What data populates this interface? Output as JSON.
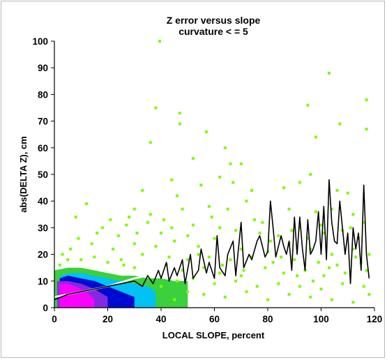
{
  "chart_data": {
    "type": "heatmap",
    "title": "Z error versus slope",
    "subtitle": "curvature < = 5",
    "xlabel": "LOCAL SLOPE, percent",
    "ylabel": "abs(DELTA Z), cm",
    "xlim": [
      0,
      120
    ],
    "ylim": [
      0,
      100
    ],
    "x_ticks": [
      0,
      20,
      40,
      60,
      80,
      100,
      120
    ],
    "y_ticks": [
      0,
      10,
      20,
      30,
      40,
      50,
      60,
      70,
      80,
      90,
      100
    ],
    "grid": false,
    "legend": "none",
    "colors": {
      "sparse": "#7cfc00",
      "low": "#32cd32",
      "medium": "#00bfff",
      "high": "#0000cd",
      "very_high": "#8a2be2",
      "peak": "#ff00ff",
      "mean_line": "#000000",
      "smooth_line": "#ffffff"
    },
    "density_regions": [
      {
        "level": "low",
        "x": [
          0,
          5,
          10,
          15,
          20,
          25,
          30,
          35,
          40,
          45,
          50
        ],
        "y_top": [
          14,
          15,
          15,
          14,
          13,
          12,
          12,
          11,
          11,
          10,
          10
        ],
        "y_bottom": [
          0,
          0,
          0,
          0,
          0,
          0,
          0,
          0,
          0,
          0,
          0
        ]
      },
      {
        "level": "medium",
        "x": [
          2,
          6,
          10,
          15,
          20,
          25,
          30,
          35,
          38
        ],
        "y_top": [
          12,
          13,
          13,
          12,
          11,
          10,
          9,
          8,
          6
        ],
        "y_bottom": [
          0,
          0,
          0,
          0,
          0,
          0,
          0,
          0,
          0
        ]
      },
      {
        "level": "high",
        "x": [
          2,
          5,
          10,
          15,
          20,
          25,
          30
        ],
        "y_top": [
          11,
          12,
          11,
          10,
          8,
          6,
          4
        ],
        "y_bottom": [
          0,
          0,
          0,
          0,
          0,
          0,
          0
        ]
      },
      {
        "level": "very_high",
        "x": [
          1,
          5,
          10,
          15,
          20
        ],
        "y_top": [
          10,
          10,
          9,
          7,
          4
        ],
        "y_bottom": [
          0,
          0,
          0,
          0,
          0
        ]
      },
      {
        "level": "peak",
        "x": [
          2,
          5,
          8,
          12,
          15
        ],
        "y_top": [
          9,
          9,
          8,
          6,
          3
        ],
        "y_bottom": [
          0,
          0,
          0,
          0,
          0
        ]
      }
    ],
    "sparse_points": [
      [
        39.5,
        100
      ],
      [
        38,
        75
      ],
      [
        47,
        73
      ],
      [
        47,
        69
      ],
      [
        36,
        62
      ],
      [
        57,
        66
      ],
      [
        66,
        54
      ],
      [
        70,
        54
      ],
      [
        64,
        60
      ],
      [
        95,
        76
      ],
      [
        98,
        64
      ],
      [
        103,
        88
      ],
      [
        117,
        78
      ],
      [
        117,
        67
      ],
      [
        107,
        69
      ],
      [
        52,
        56
      ],
      [
        62,
        49
      ],
      [
        44,
        48
      ],
      [
        92,
        47
      ],
      [
        96,
        50
      ],
      [
        106,
        44
      ],
      [
        110,
        43
      ],
      [
        86,
        45
      ],
      [
        74,
        44
      ],
      [
        33,
        44
      ],
      [
        30,
        37
      ],
      [
        46,
        42
      ],
      [
        55,
        46
      ],
      [
        67,
        47
      ],
      [
        8,
        34
      ],
      [
        12,
        39
      ],
      [
        28,
        34
      ],
      [
        35,
        32
      ],
      [
        48,
        37
      ],
      [
        58,
        38
      ],
      [
        65,
        37
      ],
      [
        72,
        40
      ],
      [
        78,
        32
      ],
      [
        88,
        37
      ],
      [
        98,
        36
      ],
      [
        104,
        37
      ],
      [
        112,
        35
      ],
      [
        116,
        32
      ],
      [
        18,
        30
      ],
      [
        24,
        27
      ],
      [
        31,
        28
      ],
      [
        41,
        33
      ],
      [
        52,
        31
      ],
      [
        62,
        30
      ],
      [
        77,
        28
      ],
      [
        84,
        27
      ],
      [
        92,
        30
      ],
      [
        101,
        28
      ],
      [
        108,
        29
      ],
      [
        114,
        26
      ],
      [
        6,
        22
      ],
      [
        14,
        24
      ],
      [
        22,
        22
      ],
      [
        30,
        24
      ],
      [
        38,
        23
      ],
      [
        45,
        25
      ],
      [
        54,
        23
      ],
      [
        60,
        26
      ],
      [
        70,
        22
      ],
      [
        80,
        21
      ],
      [
        88,
        24
      ],
      [
        96,
        22
      ],
      [
        104,
        20
      ],
      [
        112,
        22
      ],
      [
        118,
        20
      ],
      [
        5,
        18
      ],
      [
        15,
        19
      ],
      [
        25,
        18
      ],
      [
        33,
        20
      ],
      [
        43,
        19
      ],
      [
        50,
        18
      ],
      [
        58,
        19
      ],
      [
        66,
        18
      ],
      [
        74,
        19
      ],
      [
        82,
        17
      ],
      [
        90,
        18
      ],
      [
        99,
        17
      ],
      [
        106,
        16
      ],
      [
        115,
        17
      ],
      [
        42,
        16
      ],
      [
        48,
        14
      ],
      [
        56,
        15
      ],
      [
        63,
        16
      ],
      [
        71,
        14
      ],
      [
        79,
        15
      ],
      [
        86,
        13
      ],
      [
        94,
        14
      ],
      [
        101,
        12
      ],
      [
        109,
        13
      ],
      [
        117,
        14
      ],
      [
        46,
        10
      ],
      [
        52,
        11
      ],
      [
        60,
        9
      ],
      [
        68,
        10
      ],
      [
        76,
        8
      ],
      [
        84,
        9
      ],
      [
        92,
        8
      ],
      [
        100,
        7
      ],
      [
        108,
        9
      ],
      [
        116,
        8
      ],
      [
        56,
        5
      ],
      [
        64,
        4
      ],
      [
        72,
        6
      ],
      [
        80,
        3
      ],
      [
        88,
        5
      ],
      [
        96,
        4
      ],
      [
        104,
        3
      ],
      [
        112,
        2
      ],
      [
        118,
        5
      ],
      [
        45,
        3
      ],
      [
        50,
        6
      ],
      [
        40,
        8
      ],
      [
        35,
        12
      ],
      [
        30,
        15
      ],
      [
        26,
        16
      ],
      [
        10,
        18
      ],
      [
        20,
        17
      ],
      [
        2,
        16
      ],
      [
        3,
        20
      ],
      [
        9,
        26
      ],
      [
        16,
        28
      ],
      [
        21,
        33
      ],
      [
        27,
        31
      ],
      [
        40,
        28
      ],
      [
        36,
        35
      ],
      [
        44,
        30
      ],
      [
        50,
        27
      ],
      [
        59,
        34
      ],
      [
        68,
        29
      ],
      [
        75,
        33
      ],
      [
        81,
        25
      ],
      [
        89,
        29
      ],
      [
        95,
        26
      ],
      [
        100,
        31
      ],
      [
        111,
        30
      ],
      [
        113,
        19
      ],
      [
        103,
        15
      ],
      [
        97,
        10
      ],
      [
        91,
        12
      ],
      [
        85,
        19
      ],
      [
        70,
        12
      ],
      [
        62,
        13
      ],
      [
        54,
        20
      ]
    ],
    "mean_line": {
      "x": [
        0,
        5,
        10,
        15,
        20,
        25,
        30,
        33,
        35,
        37,
        39,
        40,
        42,
        43,
        45,
        46,
        48,
        49,
        51,
        52,
        54,
        55,
        57,
        58,
        60,
        61,
        62,
        64,
        65,
        67,
        68,
        70,
        71,
        73,
        74,
        76,
        77,
        79,
        80,
        81,
        82,
        83,
        85,
        86,
        87,
        88,
        89,
        90,
        91,
        92,
        93,
        94,
        95,
        96,
        97,
        98,
        99,
        100,
        101,
        102,
        103,
        104,
        105,
        106,
        107,
        108,
        109,
        110,
        111,
        112,
        113,
        114,
        115,
        116,
        117,
        118
      ],
      "y": [
        3,
        5,
        6,
        7,
        8,
        9,
        10,
        8,
        12,
        9,
        14,
        11,
        17,
        10,
        15,
        12,
        18,
        9,
        20,
        11,
        14,
        22,
        13,
        17,
        11,
        27,
        15,
        12,
        20,
        25,
        12,
        32,
        15,
        20,
        18,
        25,
        27,
        19,
        21,
        40,
        30,
        19,
        27,
        23,
        20,
        25,
        14,
        34,
        20,
        34,
        22,
        14,
        33,
        20,
        22,
        25,
        36,
        20,
        38,
        18,
        48,
        32,
        25,
        24,
        40,
        30,
        20,
        28,
        9,
        30,
        22,
        28,
        14,
        46,
        20,
        11
      ]
    },
    "smooth_line": {
      "x": [
        0,
        5,
        10,
        15,
        20,
        25,
        30,
        35,
        40
      ],
      "y": [
        4,
        5,
        6,
        7,
        8,
        9.5,
        11,
        12,
        13
      ]
    }
  }
}
